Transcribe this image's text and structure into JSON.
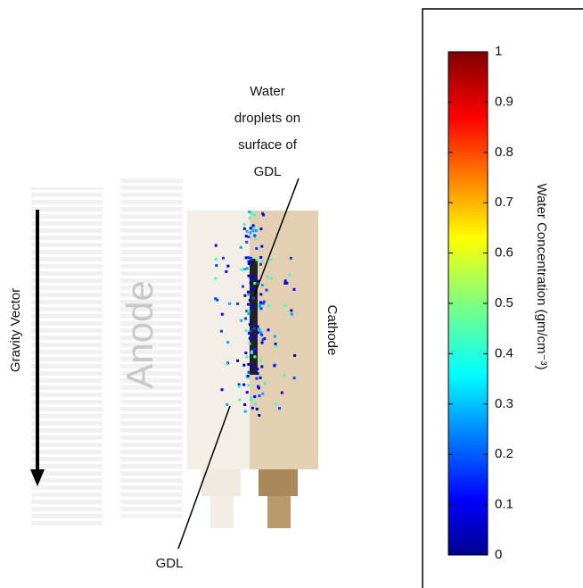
{
  "annotations": {
    "gravity": "Gravity Vector",
    "anode": "Anode",
    "cathode": "Cathode",
    "droplets": [
      "Water",
      "droplets on",
      "surface of",
      "GDL"
    ],
    "gdl": "GDL"
  },
  "colorbar": {
    "label": "Water Concentration (gm/cm⁻³)",
    "lim": [
      0,
      1
    ],
    "ticks": [
      0,
      0.1,
      0.2,
      0.3,
      0.4,
      0.5,
      0.6,
      0.7,
      0.8,
      0.9,
      1
    ]
  }
}
